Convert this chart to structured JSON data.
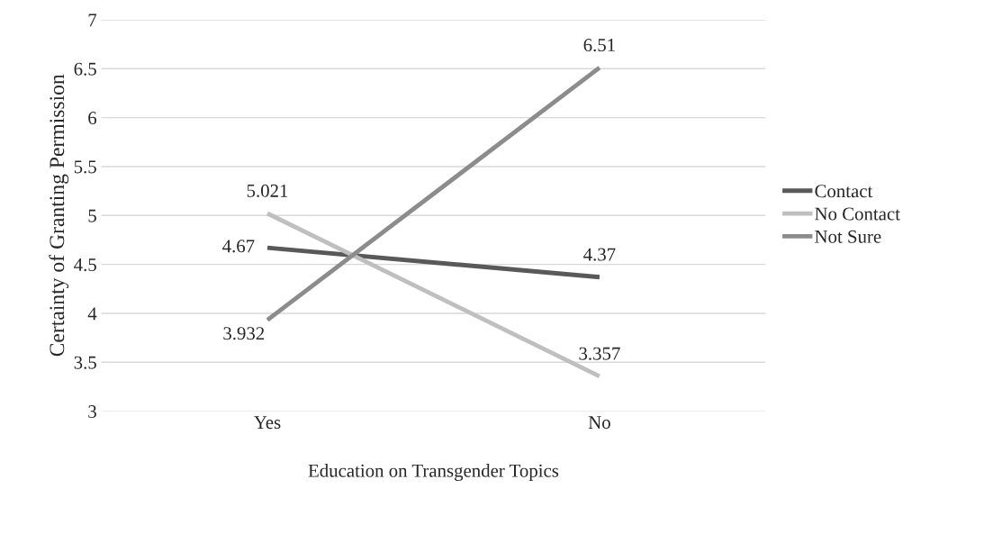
{
  "chart_data": {
    "type": "line",
    "xlabel": "Education on Transgender Topics",
    "ylabel": "Certainty of Granting Permission",
    "categories": [
      "Yes",
      "No"
    ],
    "series": [
      {
        "name": "Contact",
        "color": "#595959",
        "values": [
          4.67,
          4.37
        ]
      },
      {
        "name": "No Contact",
        "color": "#bfbfbf",
        "values": [
          5.021,
          3.357
        ]
      },
      {
        "name": "Not Sure",
        "color": "#8c8c8c",
        "values": [
          3.932,
          6.51
        ]
      }
    ],
    "ylim": [
      3,
      7
    ],
    "yticks": [
      3,
      3.5,
      4,
      4.5,
      5,
      5.5,
      6,
      6.5,
      7
    ],
    "grid": "y",
    "legend": "right",
    "data_labels": true,
    "marker": "none",
    "line_style": "solid"
  }
}
